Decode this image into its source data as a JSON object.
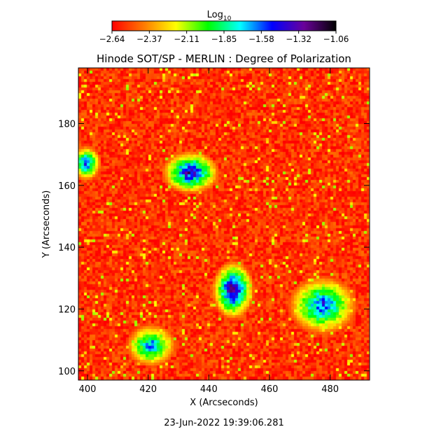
{
  "chart_data": {
    "type": "heatmap",
    "title": "Hinode SOT/SP - MERLIN : Degree of Polarization",
    "xlabel": "X (Arcseconds)",
    "ylabel": "Y (Arcseconds)",
    "xlim": [
      397,
      493
    ],
    "ylim": [
      97,
      198
    ],
    "x_ticks": [
      400,
      420,
      440,
      460,
      480
    ],
    "y_ticks": [
      100,
      120,
      140,
      160,
      180
    ],
    "colorbar": {
      "label": "Log",
      "label_subscript": "10",
      "range": [
        -2.64,
        -1.06
      ],
      "ticks": [
        "−2.64",
        "−2.37",
        "−2.11",
        "−1.85",
        "−1.58",
        "−1.32",
        "−1.06"
      ],
      "colormap": [
        "#ff0000",
        "#ff7a00",
        "#ffff00",
        "#00ff00",
        "#00ffff",
        "#0000ff",
        "#6a0099",
        "#000000"
      ]
    },
    "background_level": -2.55,
    "features": [
      {
        "description": "bright polarization cluster",
        "x": [
          444,
          452
        ],
        "y": [
          120,
          132
        ],
        "peak": -1.1
      },
      {
        "description": "ring feature",
        "x": [
          428,
          440
        ],
        "y": [
          160,
          168
        ],
        "peak": -1.2
      },
      {
        "description": "network patches",
        "x": [
          470,
          485
        ],
        "y": [
          115,
          127
        ],
        "peak": -1.4
      },
      {
        "description": "network patch",
        "x": [
          416,
          426
        ],
        "y": [
          104,
          112
        ],
        "peak": -1.5
      },
      {
        "description": "left edge patch",
        "x": [
          397,
          402
        ],
        "y": [
          164,
          170
        ],
        "peak": -1.4
      }
    ],
    "timestamp": "23-Jun-2022 19:39:06.281"
  }
}
